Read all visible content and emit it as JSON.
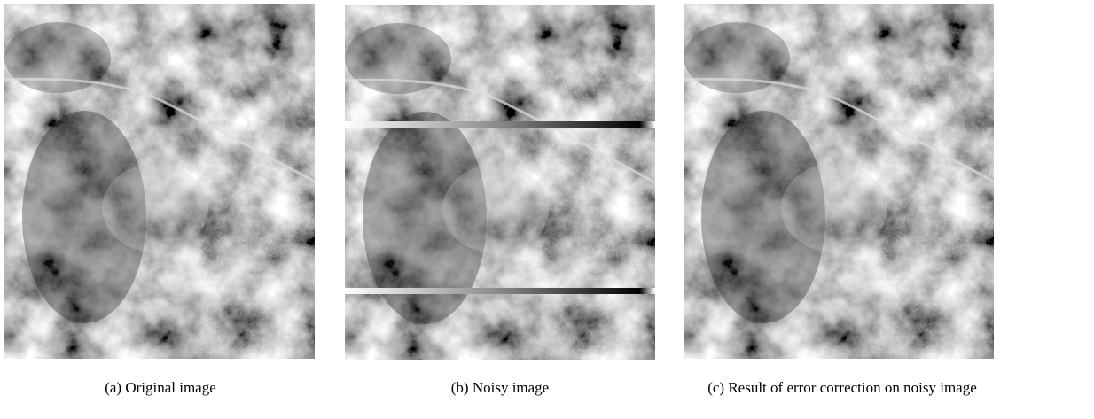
{
  "figure": {
    "panels": [
      {
        "caption": "(a) Original image"
      },
      {
        "caption": "(b) Noisy image"
      },
      {
        "caption": "(c) Result of error correction on noisy image"
      }
    ]
  }
}
